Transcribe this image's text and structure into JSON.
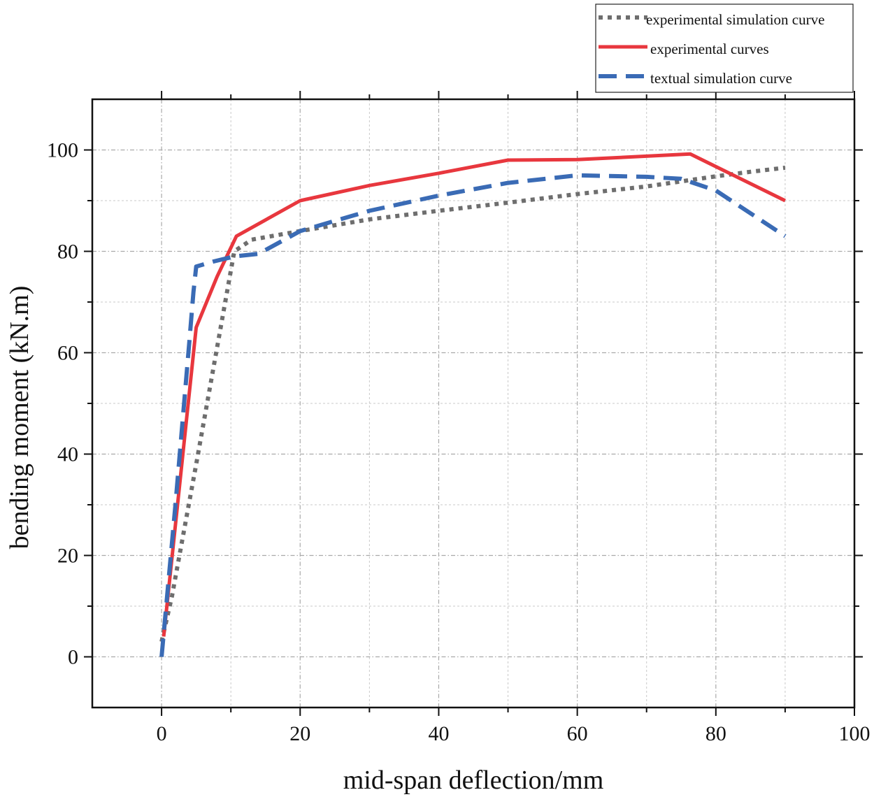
{
  "chart_data": {
    "type": "line",
    "title": "",
    "xlabel": "mid-span deflection/mm",
    "ylabel": "bending moment  (kN.m)",
    "xlim": [
      -10,
      100
    ],
    "ylim": [
      -10,
      110
    ],
    "xticks": [
      0,
      20,
      40,
      60,
      80,
      100
    ],
    "yticks": [
      0,
      20,
      40,
      60,
      80,
      100
    ],
    "grid": true,
    "legend_position": "top-right, above plot",
    "series": [
      {
        "name": "experimental simulation curve",
        "color": "#6e6e6e",
        "style": "dotted",
        "x": [
          0,
          1.5,
          5,
          10.5,
          13,
          20,
          30,
          40,
          50,
          60,
          70,
          76,
          80,
          85,
          90
        ],
        "y": [
          3,
          12,
          38,
          80,
          82.3,
          84,
          86.3,
          88,
          89.6,
          91.3,
          92.8,
          94,
          94.8,
          95.7,
          96.5
        ]
      },
      {
        "name": "experimental curves",
        "color": "#e8373e",
        "style": "solid",
        "x": [
          0.3,
          5,
          8,
          10.8,
          20,
          30,
          40,
          50,
          60,
          76.3,
          90
        ],
        "y": [
          4,
          65,
          75,
          83,
          90,
          93,
          95.4,
          98,
          98.1,
          99.2,
          90
        ]
      },
      {
        "name": "textual simulation curve",
        "color": "#3a6bb5",
        "style": "dashed",
        "x": [
          0,
          2,
          4,
          4.6,
          5,
          7.5,
          10.5,
          14,
          20,
          30,
          40,
          50,
          60,
          70,
          75,
          80,
          85,
          90
        ],
        "y": [
          0,
          30,
          62,
          72,
          77,
          78,
          79,
          79.5,
          84,
          88,
          91,
          93.5,
          95,
          94.7,
          94.3,
          92,
          87.5,
          83
        ]
      }
    ]
  }
}
